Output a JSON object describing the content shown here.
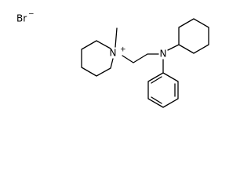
{
  "atoms": [
    {
      "label": "Br",
      "charge": "−"
    },
    {
      "label": "N",
      "charge": "+"
    },
    {
      "label": "N"
    }
  ]
}
